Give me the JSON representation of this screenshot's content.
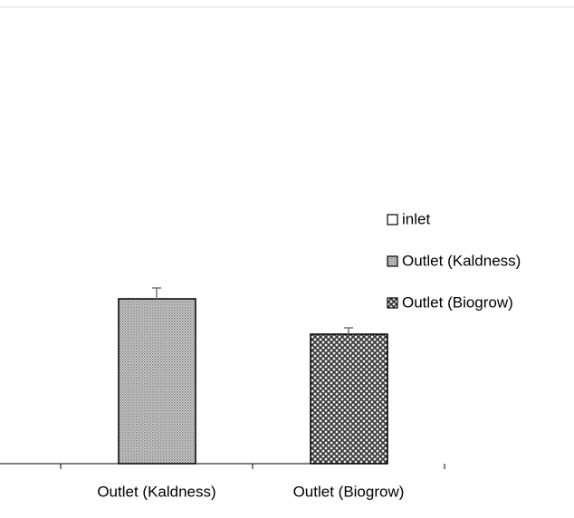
{
  "chart_data": {
    "type": "bar",
    "categories": [
      "inlet",
      "Outlet (Kaldness)",
      "Outlet (Biogrow)"
    ],
    "series": [
      {
        "name": "inlet",
        "values": [
          null,
          null,
          null
        ]
      },
      {
        "name": "Outlet (Kaldness)",
        "values": [
          null,
          null,
          null
        ]
      },
      {
        "name": "Outlet (Biogrow)",
        "values": [
          null,
          null,
          null
        ]
      }
    ],
    "values": [
      null,
      182,
      143
    ],
    "errors": [
      null,
      12,
      7
    ],
    "ylim": [
      0,
      400
    ],
    "legend": "right"
  }
}
